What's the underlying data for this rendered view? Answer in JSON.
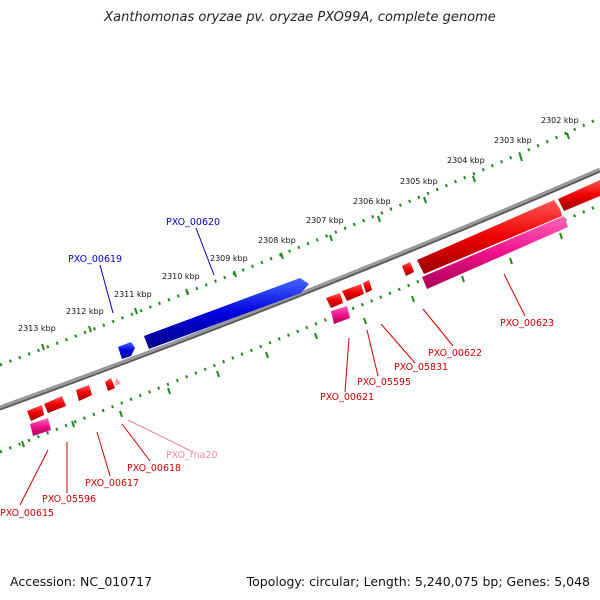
{
  "title": "Xanthomonas oryzae pv. oryzae PXO99A, complete genome",
  "footer": {
    "accession": "Accession: NC_010717",
    "topology": "Topology: circular; Length: 5,240,075 bp; Genes: 5,048"
  },
  "colors": {
    "forward_gene": "#0000dd",
    "reverse_gene": "#ee0000",
    "reverse_cds": "#ee1188",
    "rna": "#ff88bb",
    "backbone": "#888888",
    "ticks": "#228822",
    "label_blue": "#0000cc",
    "label_red": "#cc0000",
    "label_pink": "#ee88aa"
  },
  "kbp_ticks": [
    "2313 kbp",
    "2312 kbp",
    "2311 kbp",
    "2310 kbp",
    "2309 kbp",
    "2308 kbp",
    "2307 kbp",
    "2306 kbp",
    "2305 kbp",
    "2304 kbp",
    "2303 kbp",
    "2302 kbp"
  ],
  "genes": {
    "PXO_00619": "PXO_00619",
    "PXO_00620": "PXO_00620",
    "PXO_00615": "PXO_00615",
    "PXO_05596": "PXO_05596",
    "PXO_00617": "PXO_00617",
    "PXO_00618": "PXO_00618",
    "PXO_rna20": "PXO_rna20",
    "PXO_00621": "PXO_00621",
    "PXO_05595": "PXO_05595",
    "PXO_05831": "PXO_05831",
    "PXO_00622": "PXO_00622",
    "PXO_00623": "PXO_00623"
  }
}
